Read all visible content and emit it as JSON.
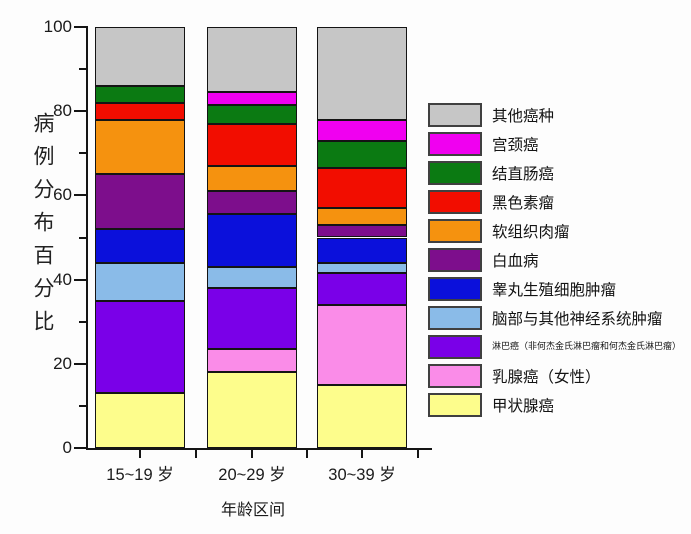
{
  "chart_data": {
    "type": "bar",
    "stacked": true,
    "orientation": "vertical",
    "xlabel": "年龄区间",
    "ylabel": "病例分布百分比",
    "ylim": [
      0,
      100
    ],
    "y_major_ticks": [
      0,
      20,
      40,
      60,
      80,
      100
    ],
    "y_minor_ticks": [
      10,
      30,
      50,
      70,
      90
    ],
    "grid": false,
    "legend_position": "right",
    "categories": [
      "15~19 岁",
      "20~29 岁",
      "30~39 岁"
    ],
    "series": [
      {
        "id": "thyroid",
        "name": "甲状腺癌",
        "color": "#FDFD8C",
        "values": [
          13,
          18,
          15
        ]
      },
      {
        "id": "breast",
        "name": "乳腺癌（女性）",
        "color": "#FA8CE8",
        "values": [
          0,
          5.5,
          19
        ]
      },
      {
        "id": "lymphoma",
        "name": "淋巴癌（非何杰金氏淋巴瘤和何杰金氏淋巴瘤）",
        "color": "#7A00E8",
        "values": [
          22,
          14.5,
          7.5
        ],
        "small_label": true
      },
      {
        "id": "brain-cns",
        "name": "脑部与其他神经系统肿瘤",
        "color": "#8ABBE8",
        "values": [
          9,
          5,
          2.5
        ]
      },
      {
        "id": "testicular",
        "name": "睾丸生殖细胞肿瘤",
        "color": "#0B10DB",
        "values": [
          8,
          12.5,
          6
        ]
      },
      {
        "id": "leukemia",
        "name": "白血病",
        "color": "#7D0E8C",
        "values": [
          13,
          5.5,
          3
        ]
      },
      {
        "id": "soft-tissue",
        "name": "软组织肉瘤",
        "color": "#F5920F",
        "values": [
          13,
          6,
          4
        ]
      },
      {
        "id": "melanoma",
        "name": "黑色素瘤",
        "color": "#F20D00",
        "values": [
          4,
          10,
          9.5
        ]
      },
      {
        "id": "colorectal",
        "name": "结直肠癌",
        "color": "#0B7A12",
        "values": [
          4,
          4.5,
          6.5
        ]
      },
      {
        "id": "cervical",
        "name": "宫颈癌",
        "color": "#F000F0",
        "values": [
          0,
          3,
          5
        ]
      },
      {
        "id": "other",
        "name": "其他癌种",
        "color": "#C6C6C6",
        "values": [
          14,
          15.5,
          22
        ]
      }
    ]
  }
}
